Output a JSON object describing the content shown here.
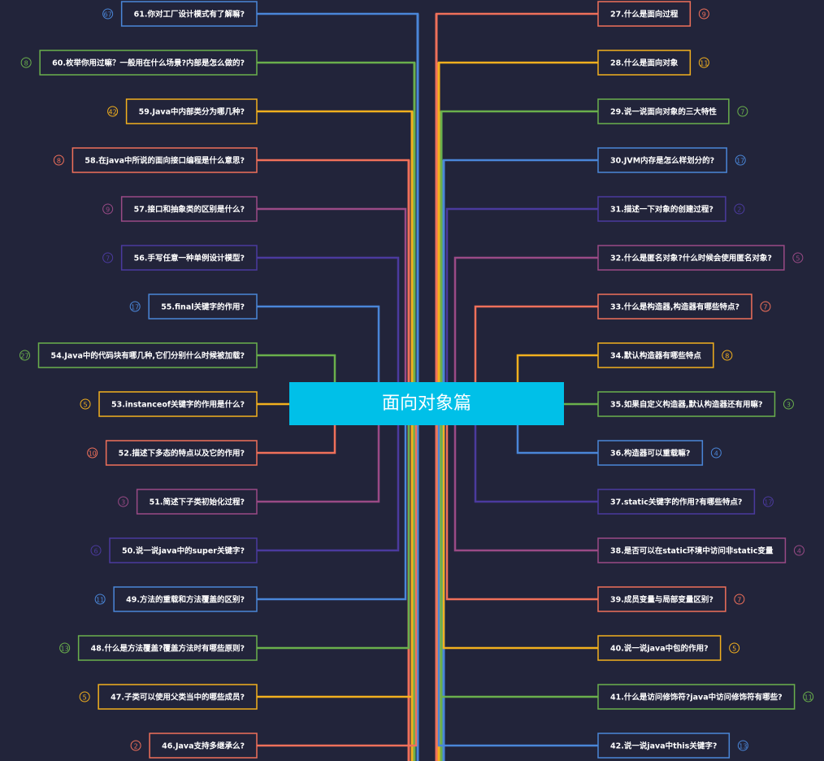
{
  "center": {
    "title": "面向对象篇"
  },
  "left_nodes": [
    {
      "label": "61.你对工厂设计模式有了解嘛?",
      "count": "67",
      "color": "#4a86d8"
    },
    {
      "label": "60.枚举你用过嘛？一般用在什么场景?内部是怎么做的?",
      "count": "8",
      "color": "#6ab04c"
    },
    {
      "label": "59.Java中内部类分为哪几种?",
      "count": "42",
      "color": "#f2b01e"
    },
    {
      "label": "58.在java中所说的面向接口编程是什么意思?",
      "count": "8",
      "color": "#f0705a"
    },
    {
      "label": "57.接口和抽象类的区别是什么?",
      "count": "9",
      "color": "#9a4a86"
    },
    {
      "label": "56.手写任意一种单例设计模型?",
      "count": "7",
      "color": "#4b3a9e"
    },
    {
      "label": "55.final关键字的作用?",
      "count": "17",
      "color": "#4a86d8"
    },
    {
      "label": "54.Java中的代码块有哪几种,它们分别什么时候被加载?",
      "count": "27",
      "color": "#6ab04c"
    },
    {
      "label": "53.instanceof关键字的作用是什么?",
      "count": "5",
      "color": "#f2b01e"
    },
    {
      "label": "52.描述下多态的特点以及它的作用?",
      "count": "10",
      "color": "#f0705a"
    },
    {
      "label": "51.简述下子类初始化过程?",
      "count": "3",
      "color": "#9a4a86"
    },
    {
      "label": "50.说一说java中的super关键字?",
      "count": "6",
      "color": "#4b3a9e"
    },
    {
      "label": "49.方法的重载和方法覆盖的区别?",
      "count": "11",
      "color": "#4a86d8"
    },
    {
      "label": "48.什么是方法覆盖?覆盖方法时有哪些原则?",
      "count": "13",
      "color": "#6ab04c"
    },
    {
      "label": "47.子类可以使用父类当中的哪些成员?",
      "count": "5",
      "color": "#f2b01e"
    },
    {
      "label": "46.Java支持多继承么?",
      "count": "2",
      "color": "#f0705a"
    }
  ],
  "right_nodes": [
    {
      "label": "27.什么是面向过程",
      "count": "9",
      "color": "#f0705a"
    },
    {
      "label": "28.什么是面向对象",
      "count": "11",
      "color": "#f2b01e"
    },
    {
      "label": "29.说一说面向对象的三大特性",
      "count": "7",
      "color": "#6ab04c"
    },
    {
      "label": "30.JVM内存是怎么样划分的?",
      "count": "17",
      "color": "#4a86d8"
    },
    {
      "label": "31.描述一下对象的创建过程?",
      "count": "2",
      "color": "#4b3a9e"
    },
    {
      "label": "32.什么是匿名对象?什么时候会使用匿名对象?",
      "count": "5",
      "color": "#9a4a86"
    },
    {
      "label": "33.什么是构造器,构造器有哪些特点?",
      "count": "7",
      "color": "#f0705a"
    },
    {
      "label": "34.默认构造器有哪些特点",
      "count": "8",
      "color": "#f2b01e"
    },
    {
      "label": "35.如果自定义构造器,默认构造器还有用嘛?",
      "count": "3",
      "color": "#6ab04c"
    },
    {
      "label": "36.构造器可以重载嘛?",
      "count": "4",
      "color": "#4a86d8"
    },
    {
      "label": "37.static关键字的作用?有哪些特点?",
      "count": "17",
      "color": "#4b3a9e"
    },
    {
      "label": "38.是否可以在static环境中访问非static变量",
      "count": "4",
      "color": "#9a4a86"
    },
    {
      "label": "39.成员变量与局部变量区别?",
      "count": "7",
      "color": "#f0705a"
    },
    {
      "label": "40.说一说java中包的作用?",
      "count": "5",
      "color": "#f2b01e"
    },
    {
      "label": "41.什么是访问修饰符?java中访问修饰符有哪些?",
      "count": "11",
      "color": "#6ab04c"
    },
    {
      "label": "42.说一说java中this关键字?",
      "count": "13",
      "color": "#4a86d8"
    }
  ]
}
